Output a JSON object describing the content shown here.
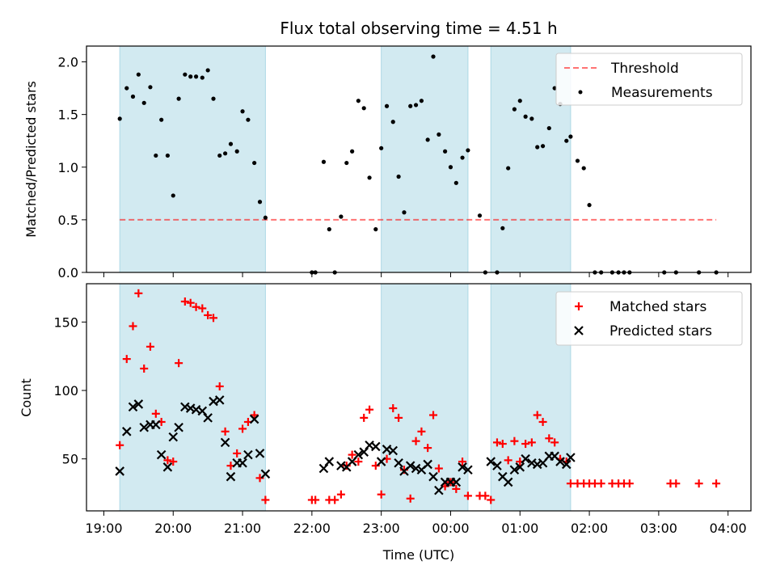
{
  "title": "Flux total observing time = 4.51 h",
  "chart_data": [
    {
      "type": "scatter",
      "xlabel": "",
      "ylabel": "Matched/Predicted stars",
      "xlim": [
        18.75,
        28.33
      ],
      "ylim": [
        0,
        2.15
      ],
      "yticks": [
        0.0,
        0.5,
        1.0,
        1.5,
        2.0
      ],
      "ytick_labels": [
        "0.0",
        "0.5",
        "1.0",
        "1.5",
        "2.0"
      ],
      "shaded_intervals": [
        [
          19.23,
          21.33
        ],
        [
          23.0,
          24.25
        ],
        [
          24.58,
          25.73
        ]
      ],
      "shade_color": "#add8e6",
      "threshold": {
        "label": "Threshold",
        "y": 0.5,
        "x": [
          19.23,
          27.83
        ],
        "color": "#ff0000"
      },
      "legend_position": "top-right",
      "series": [
        {
          "name": "Measurements",
          "color": "#000000",
          "x": [
            19.23,
            19.33,
            19.42,
            19.5,
            19.58,
            19.67,
            19.75,
            19.83,
            19.92,
            20.0,
            20.08,
            20.17,
            20.25,
            20.33,
            20.42,
            20.5,
            20.58,
            20.67,
            20.75,
            20.83,
            20.92,
            21.0,
            21.08,
            21.17,
            21.25,
            21.33,
            22.0,
            22.05,
            22.17,
            22.25,
            22.33,
            22.42,
            22.5,
            22.58,
            22.67,
            22.75,
            22.83,
            22.92,
            23.0,
            23.08,
            23.17,
            23.25,
            23.33,
            23.42,
            23.5,
            23.58,
            23.67,
            23.75,
            23.83,
            23.92,
            24.0,
            24.08,
            24.17,
            24.25,
            24.42,
            24.5,
            24.67,
            24.75,
            24.83,
            24.92,
            25.0,
            25.08,
            25.17,
            25.25,
            25.33,
            25.42,
            25.5,
            25.58,
            25.67,
            25.73,
            25.83,
            25.92,
            26.0,
            26.08,
            26.17,
            26.33,
            26.42,
            26.5,
            26.58,
            27.08,
            27.25,
            27.58,
            27.83
          ],
          "y": [
            1.46,
            1.75,
            1.67,
            1.88,
            1.61,
            1.76,
            1.11,
            1.45,
            1.11,
            0.73,
            1.65,
            1.88,
            1.86,
            1.86,
            1.85,
            1.92,
            1.65,
            1.11,
            1.13,
            1.22,
            1.15,
            1.53,
            1.45,
            1.04,
            0.67,
            0.52,
            0.0,
            0.0,
            1.05,
            0.41,
            0.0,
            0.53,
            1.04,
            1.15,
            1.63,
            1.56,
            0.9,
            0.41,
            1.18,
            1.58,
            1.43,
            0.91,
            0.57,
            1.58,
            1.59,
            1.63,
            1.26,
            2.05,
            1.31,
            1.15,
            1.0,
            0.85,
            1.09,
            1.16,
            0.54,
            0.0,
            0.0,
            0.42,
            0.99,
            1.55,
            1.63,
            1.48,
            1.46,
            1.19,
            1.2,
            1.37,
            1.75,
            1.6,
            1.25,
            1.29,
            1.06,
            0.99,
            0.64,
            0.0,
            0.0,
            0.0,
            0.0,
            0.0,
            0.0,
            0.0,
            0.0,
            0.0,
            0.0
          ]
        }
      ]
    },
    {
      "type": "scatter",
      "xlabel": "Time (UTC)",
      "ylabel": "Count",
      "xlim": [
        18.75,
        28.33
      ],
      "ylim": [
        12,
        178
      ],
      "xticks": [
        19,
        20,
        21,
        22,
        23,
        24,
        25,
        26,
        27,
        28
      ],
      "xtick_labels": [
        "19:00",
        "20:00",
        "21:00",
        "22:00",
        "23:00",
        "00:00",
        "01:00",
        "02:00",
        "03:00",
        "04:00"
      ],
      "yticks": [
        50,
        100,
        150
      ],
      "ytick_labels": [
        "50",
        "100",
        "150"
      ],
      "shaded_intervals": [
        [
          19.23,
          21.33
        ],
        [
          23.0,
          24.25
        ],
        [
          24.58,
          25.73
        ]
      ],
      "shade_color": "#add8e6",
      "legend_position": "top-right",
      "series": [
        {
          "name": "Matched stars",
          "marker": "+",
          "color": "#ff0000",
          "x": [
            19.23,
            19.33,
            19.42,
            19.5,
            19.58,
            19.67,
            19.75,
            19.83,
            19.92,
            20.0,
            20.08,
            20.17,
            20.25,
            20.33,
            20.42,
            20.5,
            20.58,
            20.67,
            20.75,
            20.83,
            20.92,
            21.0,
            21.08,
            21.17,
            21.25,
            21.33,
            22.0,
            22.05,
            22.25,
            22.33,
            22.42,
            22.5,
            22.58,
            22.67,
            22.75,
            22.83,
            22.92,
            23.0,
            23.08,
            23.17,
            23.25,
            23.33,
            23.42,
            23.5,
            23.58,
            23.67,
            23.75,
            23.83,
            23.92,
            24.0,
            24.08,
            24.17,
            24.25,
            24.42,
            24.5,
            24.58,
            24.67,
            24.75,
            24.83,
            24.92,
            25.0,
            25.08,
            25.17,
            25.25,
            25.33,
            25.42,
            25.5,
            25.58,
            25.67,
            25.73,
            25.83,
            25.92,
            26.0,
            26.08,
            26.17,
            26.33,
            26.42,
            26.5,
            26.58,
            27.17,
            27.25,
            27.58,
            27.83
          ],
          "y": [
            60,
            123,
            147,
            171,
            116,
            132,
            83,
            77,
            49,
            48,
            120,
            165,
            164,
            161,
            160,
            155,
            153,
            103,
            70,
            45,
            54,
            72,
            77,
            82,
            36,
            20,
            20,
            20,
            20,
            20,
            24,
            45,
            53,
            48,
            80,
            86,
            45,
            24,
            50,
            87,
            80,
            42,
            21,
            63,
            70,
            58,
            82,
            43,
            30,
            33,
            28,
            48,
            23,
            23,
            23,
            20,
            62,
            61,
            49,
            63,
            48,
            61,
            62,
            82,
            77,
            65,
            62,
            50,
            48,
            32,
            32,
            32,
            32,
            32,
            32,
            32,
            32,
            32,
            32,
            32,
            32,
            32,
            32
          ]
        },
        {
          "name": "Predicted stars",
          "marker": "x",
          "color": "#000000",
          "x": [
            19.23,
            19.33,
            19.42,
            19.5,
            19.58,
            19.67,
            19.75,
            19.83,
            19.92,
            20.0,
            20.08,
            20.17,
            20.25,
            20.33,
            20.42,
            20.5,
            20.58,
            20.67,
            20.75,
            20.83,
            20.92,
            21.0,
            21.08,
            21.17,
            21.25,
            21.33,
            22.17,
            22.25,
            22.42,
            22.5,
            22.58,
            22.67,
            22.75,
            22.83,
            22.92,
            23.0,
            23.08,
            23.17,
            23.25,
            23.33,
            23.42,
            23.5,
            23.58,
            23.67,
            23.75,
            23.83,
            23.92,
            24.0,
            24.08,
            24.17,
            24.25,
            24.58,
            24.67,
            24.75,
            24.83,
            24.92,
            25.0,
            25.08,
            25.17,
            25.25,
            25.33,
            25.42,
            25.5,
            25.58,
            25.67,
            25.73
          ],
          "y": [
            41,
            70,
            88,
            90,
            73,
            75,
            75,
            53,
            44,
            66,
            73,
            88,
            87,
            86,
            85,
            80,
            92,
            93,
            62,
            37,
            47,
            47,
            53,
            79,
            54,
            39,
            43,
            48,
            45,
            44,
            48,
            53,
            55,
            60,
            59,
            48,
            57,
            56,
            47,
            41,
            45,
            43,
            42,
            46,
            37,
            27,
            33,
            33,
            33,
            44,
            42,
            48,
            45,
            37,
            33,
            42,
            44,
            50,
            47,
            46,
            47,
            52,
            52,
            48,
            46,
            51
          ]
        }
      ]
    }
  ]
}
